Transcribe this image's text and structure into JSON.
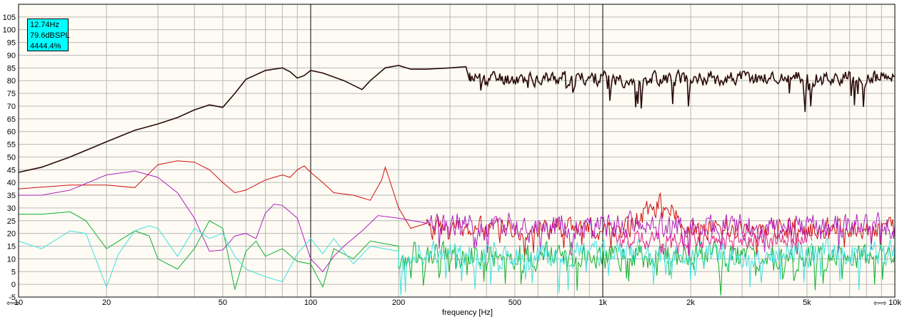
{
  "readout": {
    "frequency": "12.74Hz",
    "level": "79.6dBSPL",
    "percent": "4444.4%"
  },
  "nav": {
    "left_arrow": "⇦",
    "left_arrow2": "⇨",
    "right_arrow": "⇦",
    "right_arrow2": "⇨"
  },
  "colors": {
    "background": "#fdfbf3",
    "grid_minor": "#b8b8b8",
    "grid_major": "#000000",
    "series_black": "#2a0a0a",
    "series_red": "#d01010",
    "series_purple": "#b020c0",
    "series_green": "#10b030",
    "series_cyan": "#40e0e0",
    "series_magenta": "#e0208a"
  },
  "chart_data": {
    "type": "line",
    "x_scale": "log",
    "xlabel": "frequency [Hz]",
    "ylabel": "",
    "xlim": [
      10,
      10000
    ],
    "ylim": [
      -5,
      110
    ],
    "x_ticks": [
      {
        "value": 10,
        "label": "10"
      },
      {
        "value": 20,
        "label": "20"
      },
      {
        "value": 50,
        "label": "50"
      },
      {
        "value": 100,
        "label": "100"
      },
      {
        "value": 200,
        "label": "200"
      },
      {
        "value": 500,
        "label": "500"
      },
      {
        "value": 1000,
        "label": "1k"
      },
      {
        "value": 2000,
        "label": "2k"
      },
      {
        "value": 5000,
        "label": "5k"
      },
      {
        "value": 10000,
        "label": "10k"
      }
    ],
    "y_ticks": [
      {
        "value": 105,
        "label": "105"
      },
      {
        "value": 100,
        "label": "100"
      },
      {
        "value": 95,
        "label": "95"
      },
      {
        "value": 90,
        "label": "90"
      },
      {
        "value": 85,
        "label": "85"
      },
      {
        "value": 80,
        "label": "80"
      },
      {
        "value": 75,
        "label": "75"
      },
      {
        "value": 70,
        "label": "70"
      },
      {
        "value": 65,
        "label": "65"
      },
      {
        "value": 60,
        "label": "60"
      },
      {
        "value": 55,
        "label": "55"
      },
      {
        "value": 50,
        "label": "50"
      },
      {
        "value": 45,
        "label": "45"
      },
      {
        "value": 40,
        "label": "40"
      },
      {
        "value": 35,
        "label": "35"
      },
      {
        "value": 30,
        "label": "30"
      },
      {
        "value": 25,
        "label": "25"
      },
      {
        "value": 20,
        "label": "20"
      },
      {
        "value": 15,
        "label": "15"
      },
      {
        "value": 10,
        "label": "10"
      },
      {
        "value": 5,
        "label": "5"
      },
      {
        "value": 0,
        "label": "0"
      },
      {
        "value": -5,
        "label": "-5"
      }
    ],
    "grid": true,
    "series": [
      {
        "color": "#2a0a0a",
        "smooth": [
          [
            10,
            44
          ],
          [
            12,
            46
          ],
          [
            15,
            50
          ],
          [
            20,
            56
          ],
          [
            25,
            60.5
          ],
          [
            30,
            63
          ],
          [
            35,
            65.5
          ],
          [
            40,
            68.5
          ],
          [
            45,
            70.5
          ],
          [
            50,
            69.5
          ],
          [
            55,
            75
          ],
          [
            60,
            80.5
          ],
          [
            70,
            84
          ],
          [
            80,
            85
          ],
          [
            85,
            83.5
          ],
          [
            90,
            81
          ],
          [
            95,
            82
          ],
          [
            100,
            84
          ],
          [
            110,
            83
          ],
          [
            130,
            80
          ],
          [
            150,
            76.5
          ],
          [
            160,
            80
          ],
          [
            180,
            85
          ],
          [
            200,
            86
          ],
          [
            220,
            84.5
          ],
          [
            250,
            84.5
          ],
          [
            300,
            85
          ],
          [
            340,
            85.5
          ],
          [
            350,
            80
          ]
        ],
        "noise": {
          "from": 350,
          "to": 10000,
          "base": 81,
          "amp": 4,
          "dip": 14,
          "seed": 11
        }
      },
      {
        "color": "#d01010",
        "smooth": [
          [
            10,
            37.5
          ],
          [
            15,
            39
          ],
          [
            20,
            39
          ],
          [
            25,
            38
          ],
          [
            30,
            47
          ],
          [
            35,
            48.5
          ],
          [
            40,
            48
          ],
          [
            45,
            45
          ],
          [
            50,
            40
          ],
          [
            55,
            36
          ],
          [
            60,
            37
          ],
          [
            70,
            41
          ],
          [
            80,
            43
          ],
          [
            85,
            42
          ],
          [
            90,
            45
          ],
          [
            95,
            46.5
          ],
          [
            100,
            44
          ],
          [
            110,
            40
          ],
          [
            120,
            36
          ],
          [
            140,
            35
          ],
          [
            160,
            33
          ],
          [
            175,
            41
          ],
          [
            180,
            46
          ],
          [
            185,
            42
          ],
          [
            200,
            30
          ],
          [
            220,
            22
          ],
          [
            250,
            24
          ]
        ],
        "noise": {
          "from": 250,
          "to": 10000,
          "base": 22,
          "amp": 6,
          "dip": 10,
          "seed": 23,
          "bump": [
            1200,
            2000,
            10
          ]
        }
      },
      {
        "color": "#b020c0",
        "smooth": [
          [
            10,
            35
          ],
          [
            12,
            35
          ],
          [
            15,
            37
          ],
          [
            20,
            43
          ],
          [
            25,
            44.5
          ],
          [
            30,
            42
          ],
          [
            35,
            36
          ],
          [
            40,
            26
          ],
          [
            45,
            13
          ],
          [
            50,
            13.5
          ],
          [
            55,
            19
          ],
          [
            60,
            20
          ],
          [
            65,
            18
          ],
          [
            70,
            28
          ],
          [
            75,
            31.5
          ],
          [
            80,
            31
          ],
          [
            90,
            26
          ],
          [
            100,
            10
          ],
          [
            110,
            5
          ],
          [
            120,
            11
          ],
          [
            130,
            15
          ],
          [
            150,
            21
          ],
          [
            170,
            27
          ],
          [
            200,
            26
          ],
          [
            250,
            24
          ]
        ],
        "noise": {
          "from": 250,
          "to": 10000,
          "base": 23,
          "amp": 7,
          "dip": 12,
          "seed": 37
        }
      },
      {
        "color": "#10b030",
        "smooth": [
          [
            10,
            27.5
          ],
          [
            12,
            27.5
          ],
          [
            15,
            28.5
          ],
          [
            17,
            25
          ],
          [
            20,
            14
          ],
          [
            22,
            17
          ],
          [
            25,
            21
          ],
          [
            28,
            19
          ],
          [
            30,
            10
          ],
          [
            35,
            6
          ],
          [
            40,
            14
          ],
          [
            45,
            25
          ],
          [
            50,
            22
          ],
          [
            55,
            -2
          ],
          [
            60,
            13
          ],
          [
            65,
            17
          ],
          [
            70,
            11
          ],
          [
            80,
            14
          ],
          [
            90,
            9
          ],
          [
            100,
            8
          ],
          [
            110,
            -1
          ],
          [
            120,
            14
          ],
          [
            140,
            10
          ],
          [
            160,
            17
          ],
          [
            200,
            15
          ]
        ],
        "noise": {
          "from": 200,
          "to": 10000,
          "base": 11,
          "amp": 7,
          "dip": 14,
          "seed": 53
        }
      },
      {
        "color": "#40e0e0",
        "smooth": [
          [
            10,
            17
          ],
          [
            12,
            14
          ],
          [
            15,
            21
          ],
          [
            17,
            20
          ],
          [
            20,
            -1
          ],
          [
            22,
            12
          ],
          [
            25,
            21
          ],
          [
            28,
            23
          ],
          [
            30,
            22
          ],
          [
            35,
            11
          ],
          [
            40,
            22
          ],
          [
            45,
            18
          ],
          [
            50,
            20
          ],
          [
            55,
            11
          ],
          [
            60,
            6
          ],
          [
            70,
            3
          ],
          [
            80,
            1
          ],
          [
            90,
            12
          ],
          [
            100,
            18
          ],
          [
            110,
            12
          ],
          [
            120,
            18
          ],
          [
            140,
            8
          ],
          [
            160,
            15
          ],
          [
            200,
            13
          ]
        ],
        "noise": {
          "from": 200,
          "to": 10000,
          "base": 12,
          "amp": 7,
          "dip": 15,
          "seed": 71
        }
      },
      {
        "color": "#e0208a",
        "smooth": [],
        "noise": {
          "from": 1100,
          "to": 5200,
          "base": 18,
          "amp": 5,
          "dip": 6,
          "seed": 97
        }
      }
    ]
  }
}
